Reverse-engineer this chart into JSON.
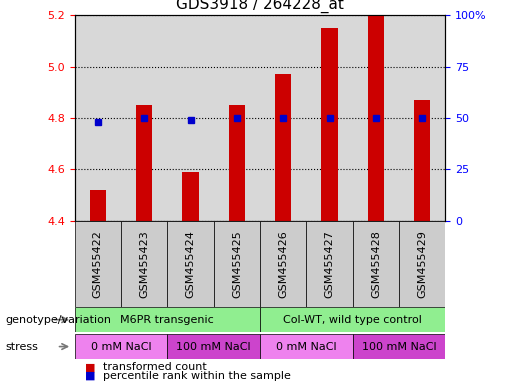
{
  "title": "GDS3918 / 264228_at",
  "samples": [
    "GSM455422",
    "GSM455423",
    "GSM455424",
    "GSM455425",
    "GSM455426",
    "GSM455427",
    "GSM455428",
    "GSM455429"
  ],
  "transformed_count": [
    4.52,
    4.85,
    4.59,
    4.85,
    4.97,
    5.15,
    5.2,
    4.87
  ],
  "percentile_rank": [
    48,
    50,
    49,
    50,
    50,
    50,
    50,
    50
  ],
  "ylim_left": [
    4.4,
    5.2
  ],
  "ylim_right": [
    0,
    100
  ],
  "yticks_left": [
    4.4,
    4.6,
    4.8,
    5.0,
    5.2
  ],
  "yticks_right": [
    0,
    25,
    50,
    75,
    100
  ],
  "bar_color": "#cc0000",
  "dot_color": "#0000cc",
  "bar_width": 0.35,
  "plot_bg_color": "#d8d8d8",
  "genotype_groups": [
    {
      "label": "M6PR transgenic",
      "start": 0,
      "end": 3,
      "color": "#90ee90"
    },
    {
      "label": "Col-WT, wild type control",
      "start": 4,
      "end": 7,
      "color": "#90ee90"
    }
  ],
  "stress_groups": [
    {
      "label": "0 mM NaCl",
      "start": 0,
      "end": 1,
      "color": "#ee82ee"
    },
    {
      "label": "100 mM NaCl",
      "start": 2,
      "end": 3,
      "color": "#cc44cc"
    },
    {
      "label": "0 mM NaCl",
      "start": 4,
      "end": 5,
      "color": "#ee82ee"
    },
    {
      "label": "100 mM NaCl",
      "start": 6,
      "end": 7,
      "color": "#cc44cc"
    }
  ],
  "legend_items": [
    {
      "label": "transformed count",
      "color": "#cc0000"
    },
    {
      "label": "percentile rank within the sample",
      "color": "#0000cc"
    }
  ],
  "genotype_label": "genotype/variation",
  "stress_label": "stress",
  "title_fontsize": 11,
  "tick_fontsize": 8,
  "annot_fontsize": 8,
  "legend_fontsize": 8
}
